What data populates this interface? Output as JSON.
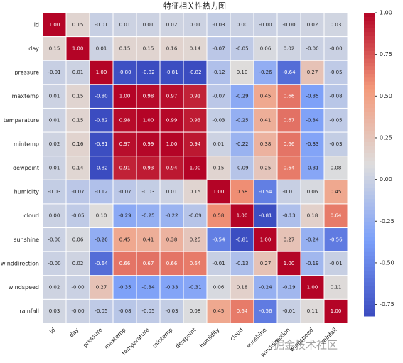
{
  "chart_data": {
    "type": "heatmap",
    "title": "特征相关性热力图",
    "x_categories": [
      "id",
      "day",
      "pressure",
      "maxtemp",
      "temparature",
      "mintemp",
      "dewpoint",
      "humidity",
      "cloud",
      "sunshine",
      "winddirection",
      "windspeed",
      "rainfall"
    ],
    "y_categories": [
      "id",
      "day",
      "pressure",
      "maxtemp",
      "temparature",
      "mintemp",
      "dewpoint",
      "humidity",
      "cloud",
      "sunshine",
      "winddirection",
      "windspeed",
      "rainfall"
    ],
    "values": [
      [
        1.0,
        0.15,
        -0.01,
        0.01,
        0.01,
        0.02,
        0.01,
        -0.03,
        0.0,
        -0.0,
        -0.0,
        0.02,
        0.03
      ],
      [
        0.15,
        1.0,
        0.01,
        0.15,
        0.15,
        0.16,
        0.14,
        -0.07,
        -0.05,
        0.06,
        0.02,
        -0.0,
        -0.0
      ],
      [
        -0.01,
        0.01,
        1.0,
        -0.8,
        -0.82,
        -0.81,
        -0.82,
        -0.12,
        0.1,
        -0.26,
        -0.64,
        0.27,
        -0.05
      ],
      [
        0.01,
        0.15,
        -0.8,
        1.0,
        0.98,
        0.97,
        0.91,
        -0.07,
        -0.29,
        0.45,
        0.66,
        -0.35,
        -0.08
      ],
      [
        0.01,
        0.15,
        -0.82,
        0.98,
        1.0,
        0.99,
        0.93,
        -0.03,
        -0.25,
        0.41,
        0.67,
        -0.34,
        -0.05
      ],
      [
        0.02,
        0.16,
        -0.81,
        0.97,
        0.99,
        1.0,
        0.94,
        0.01,
        -0.22,
        0.38,
        0.66,
        -0.33,
        -0.03
      ],
      [
        0.01,
        0.14,
        -0.82,
        0.91,
        0.93,
        0.94,
        1.0,
        0.15,
        -0.09,
        0.25,
        0.64,
        -0.31,
        0.08
      ],
      [
        -0.03,
        -0.07,
        -0.12,
        -0.07,
        -0.03,
        0.01,
        0.15,
        1.0,
        0.58,
        -0.54,
        -0.01,
        0.06,
        0.45
      ],
      [
        0.0,
        -0.05,
        0.1,
        -0.29,
        -0.25,
        -0.22,
        -0.09,
        0.58,
        1.0,
        -0.81,
        -0.13,
        0.18,
        0.64
      ],
      [
        -0.0,
        0.06,
        -0.26,
        0.45,
        0.41,
        0.38,
        0.25,
        -0.54,
        -0.81,
        1.0,
        0.27,
        -0.24,
        -0.56
      ],
      [
        -0.0,
        0.02,
        -0.64,
        0.66,
        0.67,
        0.66,
        0.64,
        -0.01,
        -0.13,
        0.27,
        1.0,
        -0.19,
        -0.01
      ],
      [
        0.02,
        -0.0,
        0.27,
        -0.35,
        -0.34,
        -0.33,
        -0.31,
        0.06,
        0.18,
        -0.24,
        -0.19,
        1.0,
        0.11
      ],
      [
        0.03,
        -0.0,
        -0.05,
        -0.08,
        -0.05,
        -0.03,
        0.08,
        0.45,
        0.64,
        -0.56,
        -0.01,
        0.11,
        1.0
      ]
    ],
    "value_labels": [
      [
        "1.00",
        "0.15",
        "-0.01",
        "0.01",
        "0.01",
        "0.02",
        "0.01",
        "-0.03",
        "0.00",
        "-0.00",
        "-0.00",
        "0.02",
        "0.03"
      ],
      [
        "0.15",
        "1.00",
        "0.01",
        "0.15",
        "0.15",
        "0.16",
        "0.14",
        "-0.07",
        "-0.05",
        "0.06",
        "0.02",
        "-0.00",
        "-0.00"
      ],
      [
        "-0.01",
        "0.01",
        "1.00",
        "-0.80",
        "-0.82",
        "-0.81",
        "-0.82",
        "-0.12",
        "0.10",
        "-0.26",
        "-0.64",
        "0.27",
        "-0.05"
      ],
      [
        "0.01",
        "0.15",
        "-0.80",
        "1.00",
        "0.98",
        "0.97",
        "0.91",
        "-0.07",
        "-0.29",
        "0.45",
        "0.66",
        "-0.35",
        "-0.08"
      ],
      [
        "0.01",
        "0.15",
        "-0.82",
        "0.98",
        "1.00",
        "0.99",
        "0.93",
        "-0.03",
        "-0.25",
        "0.41",
        "0.67",
        "-0.34",
        "-0.05"
      ],
      [
        "0.02",
        "0.16",
        "-0.81",
        "0.97",
        "0.99",
        "1.00",
        "0.94",
        "0.01",
        "-0.22",
        "0.38",
        "0.66",
        "-0.33",
        "-0.03"
      ],
      [
        "0.01",
        "0.14",
        "-0.82",
        "0.91",
        "0.93",
        "0.94",
        "1.00",
        "0.15",
        "-0.09",
        "0.25",
        "0.64",
        "-0.31",
        "0.08"
      ],
      [
        "-0.03",
        "-0.07",
        "-0.12",
        "-0.07",
        "-0.03",
        "0.01",
        "0.15",
        "1.00",
        "0.58",
        "-0.54",
        "-0.01",
        "0.06",
        "0.45"
      ],
      [
        "0.00",
        "-0.05",
        "0.10",
        "-0.29",
        "-0.25",
        "-0.22",
        "-0.09",
        "0.58",
        "1.00",
        "-0.81",
        "-0.13",
        "0.18",
        "0.64"
      ],
      [
        "-0.00",
        "0.06",
        "-0.26",
        "0.45",
        "0.41",
        "0.38",
        "0.25",
        "-0.54",
        "-0.81",
        "1.00",
        "0.27",
        "-0.24",
        "-0.56"
      ],
      [
        "-0.00",
        "0.02",
        "-0.64",
        "0.66",
        "0.67",
        "0.66",
        "0.64",
        "-0.01",
        "-0.13",
        "0.27",
        "1.00",
        "-0.19",
        "-0.01"
      ],
      [
        "0.02",
        "-0.00",
        "0.27",
        "-0.35",
        "-0.34",
        "-0.33",
        "-0.31",
        "0.06",
        "0.18",
        "-0.24",
        "-0.19",
        "1.00",
        "0.11"
      ],
      [
        "0.03",
        "-0.00",
        "-0.05",
        "-0.08",
        "-0.05",
        "-0.03",
        "0.08",
        "0.45",
        "0.64",
        "-0.56",
        "-0.01",
        "0.11",
        "1.00"
      ]
    ],
    "colormap": "coolwarm",
    "zlim": [
      -0.82,
      1.0
    ],
    "zticks": [
      {
        "value": -0.75,
        "label": "-0.75"
      },
      {
        "value": -0.5,
        "label": "-0.50"
      },
      {
        "value": -0.25,
        "label": "-0.25"
      },
      {
        "value": 0,
        "label": "0.00"
      },
      {
        "value": 0.25,
        "label": "0.25"
      },
      {
        "value": 0.5,
        "label": "0.50"
      },
      {
        "value": 0.75,
        "label": "0.75"
      },
      {
        "value": 1,
        "label": "1.00"
      }
    ],
    "watermark": "掘金技术社区"
  }
}
